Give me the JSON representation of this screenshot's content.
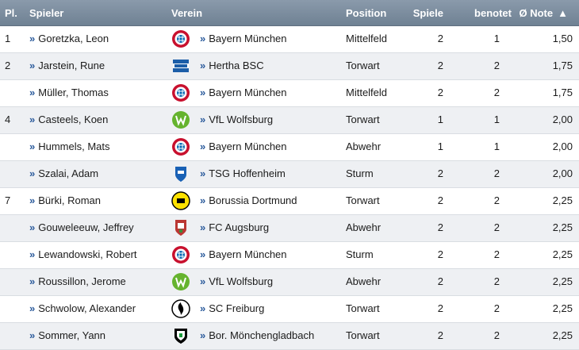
{
  "header": {
    "pl": "Pl.",
    "spieler": "Spieler",
    "verein": "Verein",
    "position": "Position",
    "spiele": "Spiele",
    "benotet": "benotet",
    "note": "Ø Note",
    "sort_icon": "sort-up-icon"
  },
  "rows": [
    {
      "pl": "1",
      "spieler": "Goretzka, Leon",
      "verein": "Bayern München",
      "club": "bayern",
      "position": "Mittelfeld",
      "spiele": "2",
      "benotet": "1",
      "note": "1,50"
    },
    {
      "pl": "2",
      "spieler": "Jarstein, Rune",
      "verein": "Hertha BSC",
      "club": "hertha",
      "position": "Torwart",
      "spiele": "2",
      "benotet": "2",
      "note": "1,75"
    },
    {
      "pl": "",
      "spieler": "Müller, Thomas",
      "verein": "Bayern München",
      "club": "bayern",
      "position": "Mittelfeld",
      "spiele": "2",
      "benotet": "2",
      "note": "1,75"
    },
    {
      "pl": "4",
      "spieler": "Casteels, Koen",
      "verein": "VfL Wolfsburg",
      "club": "wolfsburg",
      "position": "Torwart",
      "spiele": "1",
      "benotet": "1",
      "note": "2,00"
    },
    {
      "pl": "",
      "spieler": "Hummels, Mats",
      "verein": "Bayern München",
      "club": "bayern",
      "position": "Abwehr",
      "spiele": "1",
      "benotet": "1",
      "note": "2,00"
    },
    {
      "pl": "",
      "spieler": "Szalai, Adam",
      "verein": "TSG Hoffenheim",
      "club": "hoffenheim",
      "position": "Sturm",
      "spiele": "2",
      "benotet": "2",
      "note": "2,00"
    },
    {
      "pl": "7",
      "spieler": "Bürki, Roman",
      "verein": "Borussia Dortmund",
      "club": "dortmund",
      "position": "Torwart",
      "spiele": "2",
      "benotet": "2",
      "note": "2,25"
    },
    {
      "pl": "",
      "spieler": "Gouweleeuw, Jeffrey",
      "verein": "FC Augsburg",
      "club": "augsburg",
      "position": "Abwehr",
      "spiele": "2",
      "benotet": "2",
      "note": "2,25"
    },
    {
      "pl": "",
      "spieler": "Lewandowski, Robert",
      "verein": "Bayern München",
      "club": "bayern",
      "position": "Sturm",
      "spiele": "2",
      "benotet": "2",
      "note": "2,25"
    },
    {
      "pl": "",
      "spieler": "Roussillon, Jerome",
      "verein": "VfL Wolfsburg",
      "club": "wolfsburg",
      "position": "Abwehr",
      "spiele": "2",
      "benotet": "2",
      "note": "2,25"
    },
    {
      "pl": "",
      "spieler": "Schwolow, Alexander",
      "verein": "SC Freiburg",
      "club": "freiburg",
      "position": "Torwart",
      "spiele": "2",
      "benotet": "2",
      "note": "2,25"
    },
    {
      "pl": "",
      "spieler": "Sommer, Yann",
      "verein": "Bor. Mönchengladbach",
      "club": "gladbach",
      "position": "Torwart",
      "spiele": "2",
      "benotet": "2",
      "note": "2,25"
    }
  ],
  "colors": {
    "header_bg": "#7a8a9c",
    "row_alt": "#eef0f3",
    "arrow": "#2a5a9b"
  }
}
